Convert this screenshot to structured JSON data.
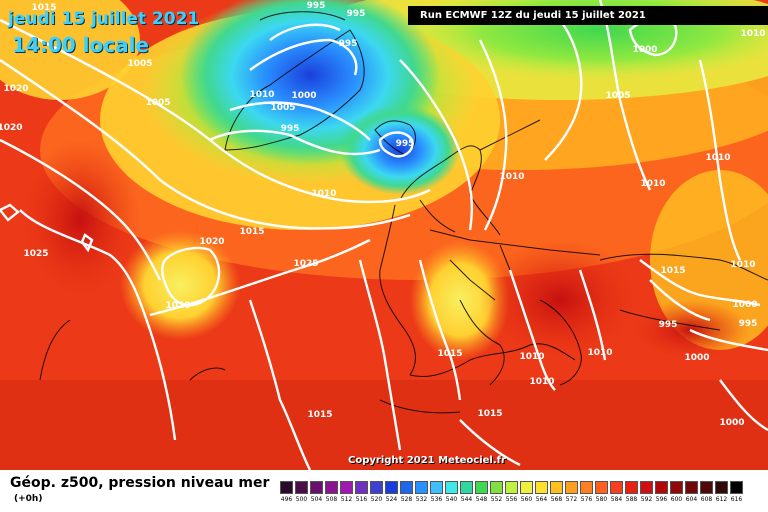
{
  "header": {
    "date": "jeudi 15 juillet 2021",
    "local_time": "14:00 locale",
    "run": "Run ECMWF 12Z du jeudi 15 juillet 2021"
  },
  "copyright": "Copyright 2021 Meteociel.fr",
  "footer": {
    "title": "Géop. z500, pression niveau mer",
    "subtitle": "(+0h)"
  },
  "legend": [
    {
      "v": "496",
      "c": "#2a0a2a"
    },
    {
      "v": "500",
      "c": "#4a0e4a"
    },
    {
      "v": "504",
      "c": "#6c1070"
    },
    {
      "v": "508",
      "c": "#8a1490"
    },
    {
      "v": "512",
      "c": "#a018b0"
    },
    {
      "v": "516",
      "c": "#7030c0"
    },
    {
      "v": "520",
      "c": "#4040d0"
    },
    {
      "v": "524",
      "c": "#1a3cdc"
    },
    {
      "v": "528",
      "c": "#1f68ee"
    },
    {
      "v": "532",
      "c": "#2a90ff"
    },
    {
      "v": "536",
      "c": "#3cc0ff"
    },
    {
      "v": "540",
      "c": "#40e8e8"
    },
    {
      "v": "544",
      "c": "#30d8a0"
    },
    {
      "v": "548",
      "c": "#40d850"
    },
    {
      "v": "552",
      "c": "#80e040"
    },
    {
      "v": "556",
      "c": "#c0f040"
    },
    {
      "v": "560",
      "c": "#f0f040"
    },
    {
      "v": "564",
      "c": "#ffe030"
    },
    {
      "v": "568",
      "c": "#ffc020"
    },
    {
      "v": "572",
      "c": "#ffa020"
    },
    {
      "v": "576",
      "c": "#ff8020"
    },
    {
      "v": "580",
      "c": "#ff6020"
    },
    {
      "v": "584",
      "c": "#f84020"
    },
    {
      "v": "588",
      "c": "#e82010"
    },
    {
      "v": "592",
      "c": "#d01010"
    },
    {
      "v": "596",
      "c": "#b00808"
    },
    {
      "v": "600",
      "c": "#900808"
    },
    {
      "v": "604",
      "c": "#700808"
    },
    {
      "v": "608",
      "c": "#500808"
    },
    {
      "v": "612",
      "c": "#300808"
    },
    {
      "v": "616",
      "c": "#000000"
    }
  ],
  "isobars": [
    {
      "v": "1015"
    },
    {
      "v": "995"
    },
    {
      "v": "995"
    },
    {
      "v": "995"
    },
    {
      "v": "1005"
    },
    {
      "v": "1005"
    },
    {
      "v": "1020"
    },
    {
      "v": "1020"
    },
    {
      "v": "1010"
    },
    {
      "v": "1000"
    },
    {
      "v": "1005"
    },
    {
      "v": "995"
    },
    {
      "v": "995"
    },
    {
      "v": "1010"
    },
    {
      "v": "1000"
    },
    {
      "v": "1005"
    },
    {
      "v": "1010"
    },
    {
      "v": "1010"
    },
    {
      "v": "1010"
    },
    {
      "v": "1015"
    },
    {
      "v": "1020"
    },
    {
      "v": "1025"
    },
    {
      "v": "1025"
    },
    {
      "v": "1020"
    },
    {
      "v": "1010"
    },
    {
      "v": "1015"
    },
    {
      "v": "1000"
    },
    {
      "v": "995"
    },
    {
      "v": "995"
    },
    {
      "v": "1000"
    },
    {
      "v": "1015"
    },
    {
      "v": "1010"
    },
    {
      "v": "1010"
    },
    {
      "v": "1010"
    },
    {
      "v": "1015"
    },
    {
      "v": "1015"
    },
    {
      "v": "1000"
    },
    {
      "v": "1010"
    }
  ]
}
